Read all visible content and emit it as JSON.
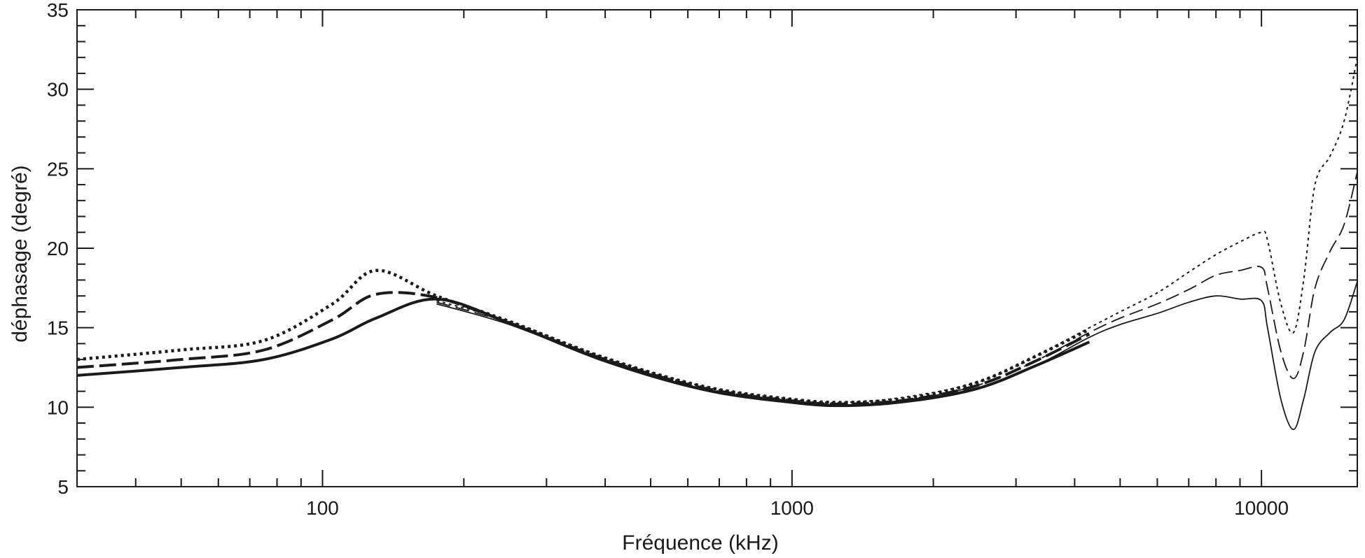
{
  "chart_data": {
    "type": "line",
    "title": "",
    "xlabel": "Fréquence (kHz)",
    "ylabel": "déphasage (degré)",
    "xscale": "log",
    "xlim": [
      30,
      16000
    ],
    "ylim": [
      5,
      35
    ],
    "x_tick_labels": [
      {
        "value": 100,
        "label": "100"
      },
      {
        "value": 1000,
        "label": "1000"
      },
      {
        "value": 10000,
        "label": "10000"
      }
    ],
    "y_tick_labels": [
      {
        "value": 5,
        "label": "5"
      },
      {
        "value": 10,
        "label": "10"
      },
      {
        "value": 15,
        "label": "15"
      },
      {
        "value": 20,
        "label": "20"
      },
      {
        "value": 25,
        "label": "25"
      },
      {
        "value": 30,
        "label": "30"
      },
      {
        "value": 35,
        "label": "35"
      }
    ],
    "grid": false,
    "legend": "none",
    "series": [
      {
        "style": "solid-thick",
        "x": [
          30,
          50,
          75,
          105,
          130,
          175,
          250,
          400,
          650,
          1000,
          1300,
          1800,
          2500,
          3300,
          4300
        ],
        "y": [
          12.0,
          12.5,
          13.0,
          14.3,
          15.6,
          16.8,
          15.3,
          12.9,
          11.1,
          10.3,
          10.1,
          10.4,
          11.2,
          12.6,
          14.1
        ]
      },
      {
        "style": "solid-thin",
        "x": [
          175,
          250,
          400,
          650,
          1000,
          1300,
          1800,
          2500,
          3300,
          4300,
          5000,
          6000,
          7000,
          8000,
          9000,
          10000,
          10300,
          11000,
          11700,
          12300,
          13000,
          14000,
          15000,
          16000
        ],
        "y": [
          16.5,
          15.2,
          12.9,
          11.1,
          10.3,
          10.1,
          10.4,
          11.2,
          12.6,
          14.4,
          15.2,
          15.9,
          16.6,
          17.0,
          16.8,
          16.7,
          15.0,
          10.5,
          8.6,
          10.5,
          13.5,
          14.7,
          15.5,
          17.9
        ]
      },
      {
        "style": "dashed-thick",
        "x": [
          30,
          50,
          75,
          105,
          130,
          175,
          250,
          400,
          650,
          1000,
          1300,
          1800,
          2500,
          3300,
          4300
        ],
        "y": [
          12.5,
          13.0,
          13.6,
          15.5,
          17.1,
          16.9,
          15.3,
          13.0,
          11.2,
          10.4,
          10.2,
          10.5,
          11.4,
          12.9,
          14.6
        ]
      },
      {
        "style": "dashed-thin",
        "x": [
          175,
          250,
          400,
          650,
          1000,
          1300,
          1800,
          2500,
          3300,
          4300,
          5000,
          6000,
          7000,
          8000,
          9000,
          10000,
          10300,
          11000,
          11700,
          12300,
          13000,
          14000,
          15000,
          16000
        ],
        "y": [
          16.6,
          15.3,
          13.0,
          11.2,
          10.4,
          10.2,
          10.5,
          11.4,
          12.9,
          14.7,
          15.6,
          16.5,
          17.4,
          18.3,
          18.6,
          18.8,
          17.5,
          13.5,
          11.8,
          13.5,
          17.5,
          19.8,
          21.5,
          24.8
        ]
      },
      {
        "style": "dotted-thick",
        "x": [
          30,
          50,
          75,
          105,
          130,
          175,
          250,
          400,
          650,
          1000,
          1300,
          1800,
          2500,
          3300,
          4300
        ],
        "y": [
          13.0,
          13.6,
          14.2,
          16.5,
          18.6,
          17.0,
          15.4,
          13.1,
          11.3,
          10.5,
          10.3,
          10.6,
          11.6,
          13.2,
          14.9
        ]
      },
      {
        "style": "dotted-thin",
        "x": [
          175,
          250,
          400,
          650,
          1000,
          1300,
          1800,
          2500,
          3300,
          4300,
          5000,
          6000,
          7000,
          8000,
          9000,
          10000,
          10300,
          11000,
          11700,
          12300,
          13000,
          14000,
          15000,
          16000
        ],
        "y": [
          16.7,
          15.4,
          13.1,
          11.3,
          10.5,
          10.3,
          10.7,
          11.6,
          13.2,
          15.0,
          16.0,
          17.2,
          18.5,
          19.6,
          20.4,
          21.0,
          20.5,
          16.5,
          14.7,
          18.0,
          24.0,
          25.8,
          28.0,
          32.0
        ]
      }
    ]
  }
}
